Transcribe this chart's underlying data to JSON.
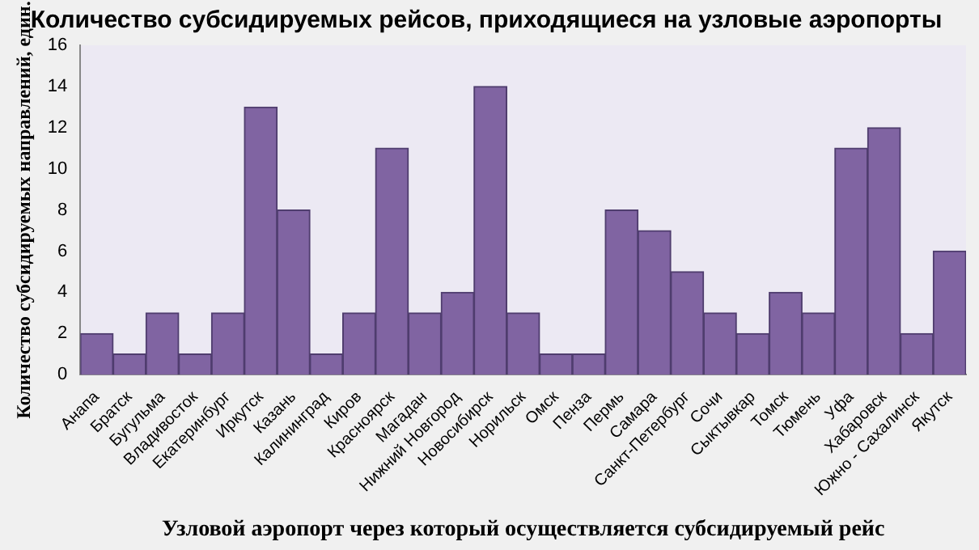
{
  "chart_data": {
    "type": "bar",
    "title": "Количество субсидируемых рейсов, приходящиеся на узловые аэропорты",
    "xlabel": "Узловой аэропорт через который осуществляется субсидируемый рейс",
    "ylabel": "Количество субсидируемых направлений, един.",
    "categories": [
      "Анапа",
      "Братск",
      "Бугульма",
      "Владивосток",
      "Екатеринбург",
      "Иркутск",
      "Казань",
      "Калининград",
      "Киров",
      "Красноярск",
      "Магадан",
      "Нижний Новгород",
      "Новосибирск",
      "Норильск",
      "Омск",
      "Пенза",
      "Пермь",
      "Самара",
      "Санкт-Петербург",
      "Сочи",
      "Сыктывкар",
      "Томск",
      "Тюмень",
      "Уфа",
      "Хабаровск",
      "Южно - Сахалинск",
      "Якутск"
    ],
    "values": [
      2,
      1,
      3,
      1,
      3,
      13,
      8,
      1,
      3,
      11,
      3,
      4,
      14,
      3,
      1,
      1,
      8,
      7,
      5,
      3,
      2,
      4,
      3,
      11,
      12,
      2,
      6
    ],
    "color": "#8064a2",
    "ylim": [
      0,
      16
    ],
    "yticks": [
      0,
      2,
      4,
      6,
      8,
      10,
      12,
      14,
      16
    ],
    "grid": false,
    "legend": false
  }
}
